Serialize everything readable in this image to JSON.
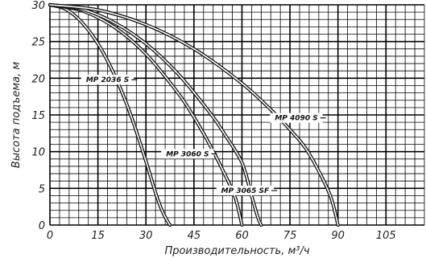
{
  "chart_data": {
    "type": "line",
    "xlabel": "Производительность, м³/ч",
    "ylabel": "Высота подъема, м",
    "xlim": [
      0,
      117
    ],
    "ylim": [
      0,
      30
    ],
    "x_ticks": [
      0,
      15,
      30,
      45,
      60,
      75,
      90,
      105
    ],
    "y_ticks": [
      0,
      5,
      10,
      15,
      20,
      25,
      30
    ],
    "grid": true,
    "series": [
      {
        "name": "MP 2036 S",
        "x": [
          0,
          5,
          10,
          15,
          20,
          25,
          30,
          33,
          35,
          36.5,
          37.5
        ],
        "y": [
          30,
          29.4,
          27.6,
          24.7,
          20.6,
          15.3,
          8.7,
          4.4,
          2.0,
          0.7,
          0
        ]
      },
      {
        "name": "MP 3060 S",
        "x": [
          0,
          10,
          20,
          30,
          40,
          45,
          50,
          55,
          58,
          60
        ],
        "y": [
          30,
          29.2,
          27.0,
          23.3,
          18.0,
          14.7,
          10.9,
          6.6,
          3.6,
          0
        ]
      },
      {
        "name": "MP 3065 SF",
        "x": [
          0,
          10,
          20,
          30,
          40,
          50,
          55,
          60,
          63,
          65,
          66
        ],
        "y": [
          30,
          29.4,
          27.6,
          24.7,
          20.6,
          15.3,
          12.1,
          8.5,
          4.0,
          1.0,
          0
        ]
      },
      {
        "name": "MP 4090 S",
        "x": [
          0,
          15,
          30,
          45,
          60,
          70,
          75,
          80,
          85,
          88,
          90
        ],
        "y": [
          30,
          29.3,
          27.3,
          24.0,
          19.3,
          15.3,
          13.0,
          10.4,
          6.5,
          3.5,
          0
        ]
      }
    ],
    "labels": [
      {
        "text": "MP 2036 S",
        "series": "MP 2036 S",
        "at": [
          18,
          19.8
        ]
      },
      {
        "text": "MP 3060 S",
        "series": "MP 3060 S",
        "at": [
          43,
          9.7
        ]
      },
      {
        "text": "MP 3065 SF",
        "series": "MP 3065 SF",
        "at": [
          61,
          4.7
        ]
      },
      {
        "text": "MP 4090 S",
        "series": "MP 4090 S",
        "at": [
          77,
          14.6
        ]
      }
    ]
  }
}
